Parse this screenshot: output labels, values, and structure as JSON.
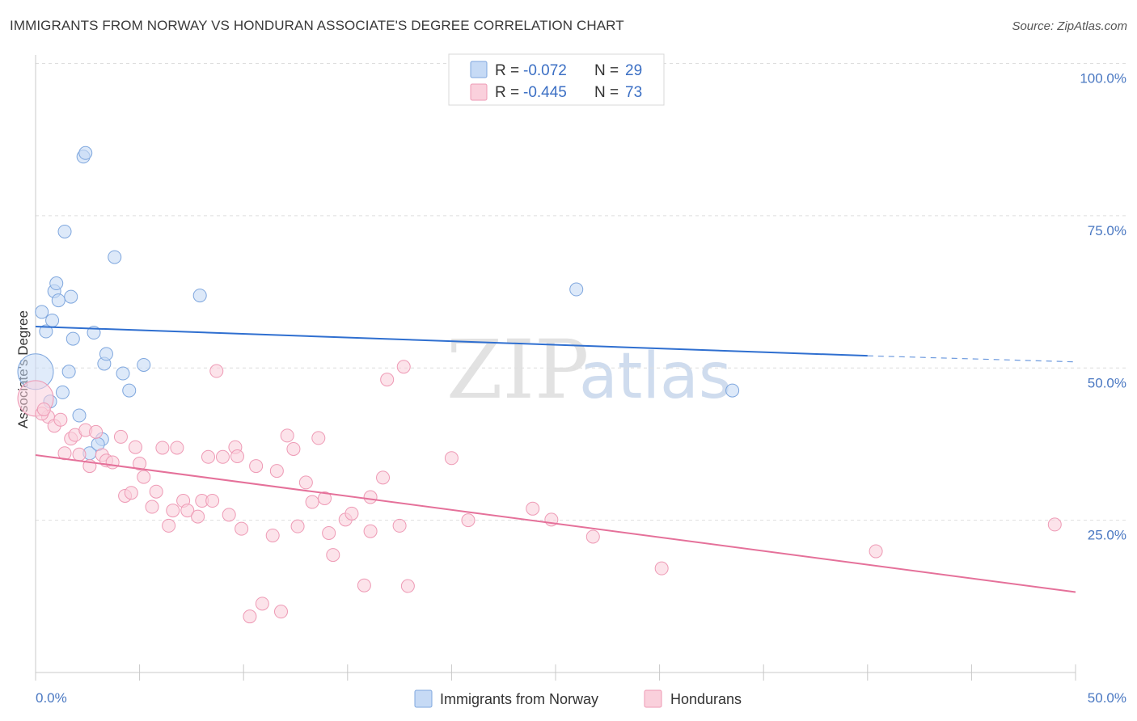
{
  "title": "IMMIGRANTS FROM NORWAY VS HONDURAN ASSOCIATE'S DEGREE CORRELATION CHART",
  "source": "Source: ZipAtlas.com",
  "watermark": {
    "zip": "ZIP",
    "atlas": "atlas"
  },
  "legend": {
    "r_label": "R =",
    "n_label": "N =",
    "norway": {
      "r": "-0.072",
      "n": "29",
      "color": "#a9c8f0"
    },
    "honduras": {
      "r": "-0.445",
      "n": "73",
      "color": "#f6b8cc"
    }
  },
  "bottom_legend": {
    "norway": "Immigrants from Norway",
    "honduras": "Hondurans"
  },
  "colors": {
    "norway_fill": "#c6daf5",
    "norway_stroke": "#7fa7de",
    "norway_line": "#2f6fd0",
    "honduras_fill": "#fad0dc",
    "honduras_stroke": "#ee9ab5",
    "honduras_line": "#e5719a",
    "tick": "#4a78c2"
  },
  "chart_data": {
    "type": "scatter",
    "title": "IMMIGRANTS FROM NORWAY VS HONDURAN ASSOCIATE'S DEGREE CORRELATION CHART",
    "xlabel": "",
    "ylabel": "Associate's Degree",
    "xlim": [
      0,
      50
    ],
    "ylim": [
      0,
      100
    ],
    "x_tick_labels": [
      "0.0%",
      "50.0%"
    ],
    "y_ticks": [
      25,
      50,
      75,
      100
    ],
    "y_tick_labels": [
      "25.0%",
      "50.0%",
      "75.0%",
      "100.0%"
    ],
    "series": [
      {
        "name": "Immigrants from Norway",
        "R": -0.072,
        "N": 29,
        "trend": {
          "x0": 0,
          "y0": 56.8,
          "x1": 40,
          "y1": 52.0,
          "dash_to_x": 50,
          "dash_to_y": 51.0
        },
        "points": [
          {
            "x": 0.0,
            "y": 49.4,
            "big": true
          },
          {
            "x": 0.3,
            "y": 59.2
          },
          {
            "x": 0.5,
            "y": 56.0
          },
          {
            "x": 0.7,
            "y": 44.5
          },
          {
            "x": 0.8,
            "y": 57.8
          },
          {
            "x": 0.9,
            "y": 62.6
          },
          {
            "x": 1.0,
            "y": 63.9
          },
          {
            "x": 1.1,
            "y": 61.1
          },
          {
            "x": 1.3,
            "y": 46.0
          },
          {
            "x": 1.4,
            "y": 72.4
          },
          {
            "x": 1.6,
            "y": 49.4
          },
          {
            "x": 1.7,
            "y": 61.7
          },
          {
            "x": 1.8,
            "y": 54.8
          },
          {
            "x": 2.1,
            "y": 42.2
          },
          {
            "x": 2.3,
            "y": 84.7
          },
          {
            "x": 2.4,
            "y": 85.3
          },
          {
            "x": 2.6,
            "y": 36.0
          },
          {
            "x": 2.8,
            "y": 55.8
          },
          {
            "x": 3.2,
            "y": 38.3
          },
          {
            "x": 3.3,
            "y": 50.7
          },
          {
            "x": 3.4,
            "y": 52.3
          },
          {
            "x": 3.8,
            "y": 68.2
          },
          {
            "x": 4.2,
            "y": 49.1
          },
          {
            "x": 4.5,
            "y": 46.3
          },
          {
            "x": 5.2,
            "y": 50.5
          },
          {
            "x": 7.9,
            "y": 61.9
          },
          {
            "x": 26.0,
            "y": 62.9
          },
          {
            "x": 33.5,
            "y": 46.3
          },
          {
            "x": 3.0,
            "y": 37.5
          }
        ]
      },
      {
        "name": "Hondurans",
        "R": -0.445,
        "N": 73,
        "trend": {
          "x0": 0,
          "y0": 35.7,
          "x1": 50,
          "y1": 13.2
        },
        "points": [
          {
            "x": 0.0,
            "y": 45.0,
            "big": true
          },
          {
            "x": 0.6,
            "y": 42.0
          },
          {
            "x": 0.9,
            "y": 40.5
          },
          {
            "x": 1.2,
            "y": 41.5
          },
          {
            "x": 1.4,
            "y": 36.0
          },
          {
            "x": 1.7,
            "y": 38.4
          },
          {
            "x": 1.9,
            "y": 39.0
          },
          {
            "x": 2.1,
            "y": 35.8
          },
          {
            "x": 2.4,
            "y": 39.8
          },
          {
            "x": 2.6,
            "y": 33.9
          },
          {
            "x": 2.9,
            "y": 39.5
          },
          {
            "x": 3.2,
            "y": 35.7
          },
          {
            "x": 3.4,
            "y": 34.8
          },
          {
            "x": 3.7,
            "y": 34.5
          },
          {
            "x": 4.1,
            "y": 38.7
          },
          {
            "x": 4.3,
            "y": 29.0
          },
          {
            "x": 4.6,
            "y": 29.5
          },
          {
            "x": 4.8,
            "y": 37.0
          },
          {
            "x": 5.0,
            "y": 34.3
          },
          {
            "x": 5.2,
            "y": 32.1
          },
          {
            "x": 5.6,
            "y": 27.2
          },
          {
            "x": 5.8,
            "y": 29.7
          },
          {
            "x": 6.1,
            "y": 36.9
          },
          {
            "x": 6.4,
            "y": 24.1
          },
          {
            "x": 6.6,
            "y": 26.6
          },
          {
            "x": 6.8,
            "y": 36.9
          },
          {
            "x": 7.1,
            "y": 28.2
          },
          {
            "x": 7.3,
            "y": 26.6
          },
          {
            "x": 7.8,
            "y": 25.6
          },
          {
            "x": 8.0,
            "y": 28.2
          },
          {
            "x": 8.3,
            "y": 35.4
          },
          {
            "x": 8.5,
            "y": 28.2
          },
          {
            "x": 8.7,
            "y": 49.5
          },
          {
            "x": 9.0,
            "y": 35.4
          },
          {
            "x": 9.3,
            "y": 25.9
          },
          {
            "x": 9.6,
            "y": 37.0
          },
          {
            "x": 9.7,
            "y": 35.5
          },
          {
            "x": 9.9,
            "y": 23.6
          },
          {
            "x": 10.3,
            "y": 9.2
          },
          {
            "x": 10.6,
            "y": 33.9
          },
          {
            "x": 10.9,
            "y": 11.3
          },
          {
            "x": 11.4,
            "y": 22.5
          },
          {
            "x": 11.6,
            "y": 33.1
          },
          {
            "x": 11.8,
            "y": 10.0
          },
          {
            "x": 12.1,
            "y": 38.9
          },
          {
            "x": 12.4,
            "y": 36.7
          },
          {
            "x": 12.6,
            "y": 24.0
          },
          {
            "x": 13.0,
            "y": 31.2
          },
          {
            "x": 13.3,
            "y": 28.0
          },
          {
            "x": 13.6,
            "y": 38.5
          },
          {
            "x": 13.9,
            "y": 28.6
          },
          {
            "x": 14.1,
            "y": 22.9
          },
          {
            "x": 14.3,
            "y": 19.3
          },
          {
            "x": 14.9,
            "y": 25.1
          },
          {
            "x": 15.2,
            "y": 26.1
          },
          {
            "x": 15.8,
            "y": 14.3
          },
          {
            "x": 16.1,
            "y": 23.2
          },
          {
            "x": 16.1,
            "y": 28.8
          },
          {
            "x": 16.7,
            "y": 32.0
          },
          {
            "x": 16.9,
            "y": 48.1
          },
          {
            "x": 17.5,
            "y": 24.1
          },
          {
            "x": 17.7,
            "y": 50.2
          },
          {
            "x": 17.9,
            "y": 14.2
          },
          {
            "x": 20.0,
            "y": 35.2
          },
          {
            "x": 20.8,
            "y": 25.0
          },
          {
            "x": 23.9,
            "y": 26.9
          },
          {
            "x": 24.8,
            "y": 25.1
          },
          {
            "x": 26.8,
            "y": 22.3
          },
          {
            "x": 30.1,
            "y": 17.1
          },
          {
            "x": 40.4,
            "y": 19.9
          },
          {
            "x": 49.0,
            "y": 24.3
          },
          {
            "x": 0.3,
            "y": 42.5
          },
          {
            "x": 0.4,
            "y": 43.2
          }
        ]
      }
    ]
  }
}
